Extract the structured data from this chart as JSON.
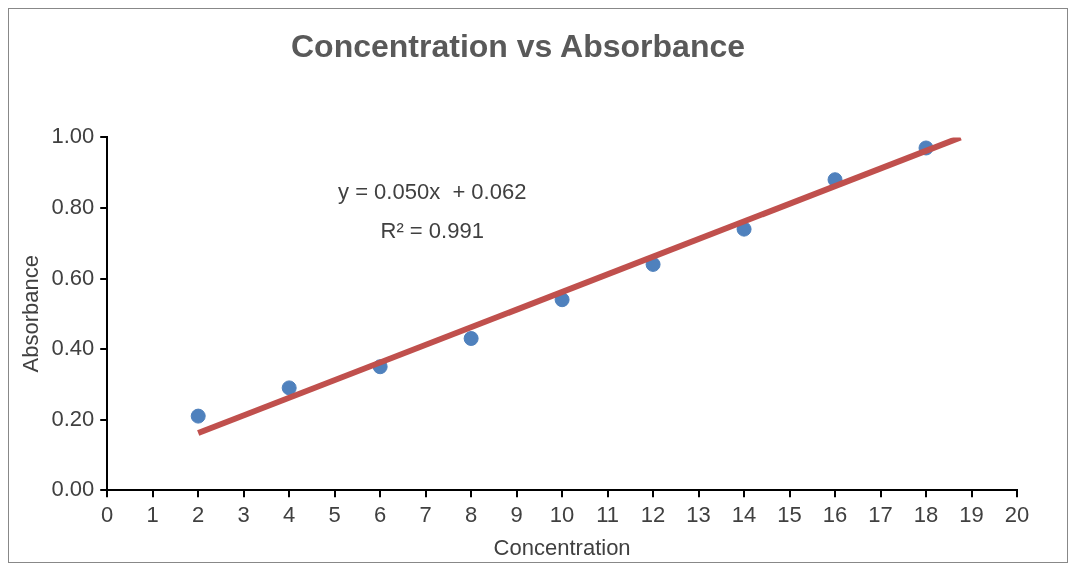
{
  "chart_data": {
    "type": "scatter",
    "title": "Concentration vs Absorbance",
    "xlabel": "Concentration",
    "ylabel": "Absorbance",
    "series": [
      {
        "color": "#4f81bd",
        "marker": "circle",
        "x": [
          2,
          4,
          6,
          8,
          10,
          12,
          14,
          16,
          18
        ],
        "values": [
          0.21,
          0.29,
          0.35,
          0.43,
          0.54,
          0.64,
          0.74,
          0.88,
          0.97
        ]
      },
      {
        "type": "line",
        "marker": "none",
        "color": "#c0504d",
        "x": [
          2,
          18.76
        ],
        "values": [
          0.162,
          1.0
        ]
      }
    ],
    "xlim": [
      0,
      20
    ],
    "xticks": [
      0,
      1,
      2,
      3,
      4,
      5,
      6,
      7,
      8,
      9,
      10,
      11,
      12,
      13,
      14,
      15,
      16,
      17,
      18,
      19,
      20
    ],
    "ylim": [
      0,
      1
    ],
    "yticks": [
      {
        "value": 0,
        "label": "0.00"
      },
      {
        "value": 0.2,
        "label": "0.20"
      },
      {
        "value": 0.4,
        "label": "0.40"
      },
      {
        "value": 0.6,
        "label": "0.60"
      },
      {
        "value": 0.8,
        "label": "0.80"
      },
      {
        "value": 1,
        "label": "1.00"
      }
    ],
    "grid": false,
    "legend": false,
    "annotations": [
      "y = 0.050x  + 0.062",
      "R² = 0.991"
    ]
  }
}
